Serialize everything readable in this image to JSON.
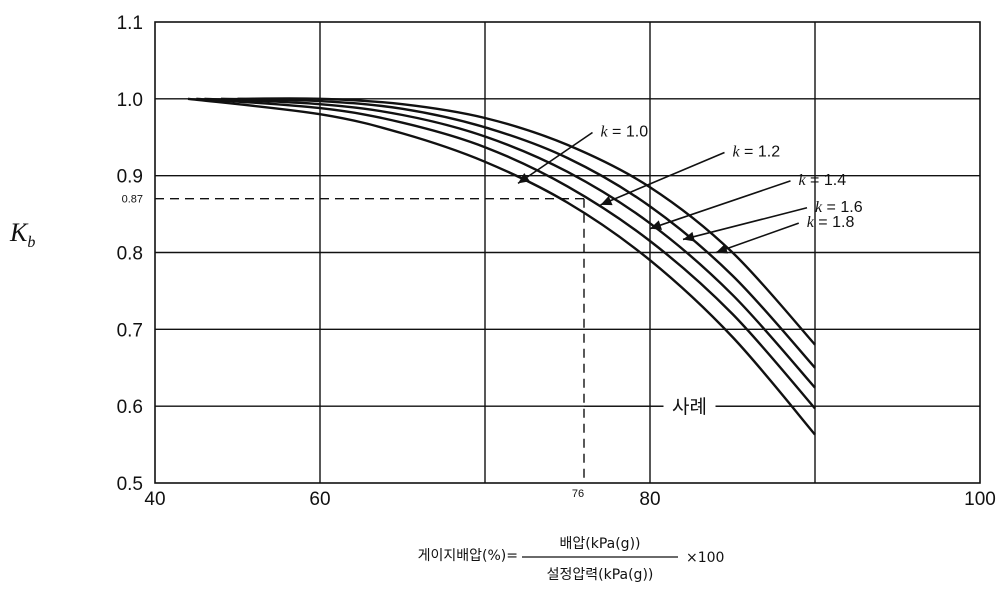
{
  "chart_data": {
    "type": "line",
    "ylabel": "K",
    "ylabel_sub": "b",
    "xlim": [
      40,
      100
    ],
    "ylim": [
      0.5,
      1.1
    ],
    "grid": true,
    "x_ticks": [
      "40",
      "60",
      "80",
      "100"
    ],
    "y_ticks": [
      "0.5",
      "0.6",
      "0.7",
      "0.8",
      "0.9",
      "1.0",
      "1.1"
    ],
    "series": [
      {
        "name": "k = 1.0",
        "x": [
          55,
          60,
          65,
          70,
          75,
          80,
          85,
          90
        ],
        "y": [
          1.0,
          1.0,
          0.993,
          0.975,
          0.94,
          0.885,
          0.8,
          0.68
        ]
      },
      {
        "name": "k = 1.2",
        "x": [
          54,
          60,
          65,
          70,
          75,
          80,
          85,
          90
        ],
        "y": [
          1.0,
          0.997,
          0.987,
          0.963,
          0.923,
          0.86,
          0.77,
          0.65
        ]
      },
      {
        "name": "k = 1.4",
        "x": [
          53,
          60,
          65,
          70,
          75,
          80,
          85,
          90
        ],
        "y": [
          1.0,
          0.993,
          0.979,
          0.951,
          0.905,
          0.838,
          0.745,
          0.624
        ]
      },
      {
        "name": "k = 1.6",
        "x": [
          52.5,
          60,
          65,
          70,
          75,
          80,
          85,
          90
        ],
        "y": [
          1.0,
          0.988,
          0.969,
          0.937,
          0.886,
          0.815,
          0.72,
          0.597
        ]
      },
      {
        "name": "k = 1.8",
        "x": [
          52,
          60,
          65,
          70,
          75,
          80,
          85,
          90
        ],
        "y": [
          1.0,
          0.98,
          0.955,
          0.918,
          0.865,
          0.79,
          0.69,
          0.563
        ]
      }
    ],
    "example": {
      "label": "사례",
      "x": 76,
      "y": 0.87,
      "x_text": "76",
      "y_text": "0.87"
    },
    "formula": {
      "lhs": "게이지배압(%)=",
      "numerator": "배압(kPa(g))",
      "denominator": "설정압력(kPa(g))",
      "suffix": "×100"
    },
    "series_label_k": "k",
    "series_labels": [
      {
        "value": "1.0",
        "at": [
          72,
          0.89
        ],
        "lx": 77,
        "ly": 0.951
      },
      {
        "value": "1.2",
        "at": [
          77,
          0.862
        ],
        "lx": 85,
        "ly": 0.925
      },
      {
        "value": "1.4",
        "at": [
          80,
          0.831
        ],
        "lx": 89,
        "ly": 0.888
      },
      {
        "value": "1.6",
        "at": [
          82,
          0.817
        ],
        "lx": 90,
        "ly": 0.853
      },
      {
        "value": "1.8",
        "at": [
          84,
          0.8
        ],
        "lx": 89.5,
        "ly": 0.833
      }
    ]
  }
}
